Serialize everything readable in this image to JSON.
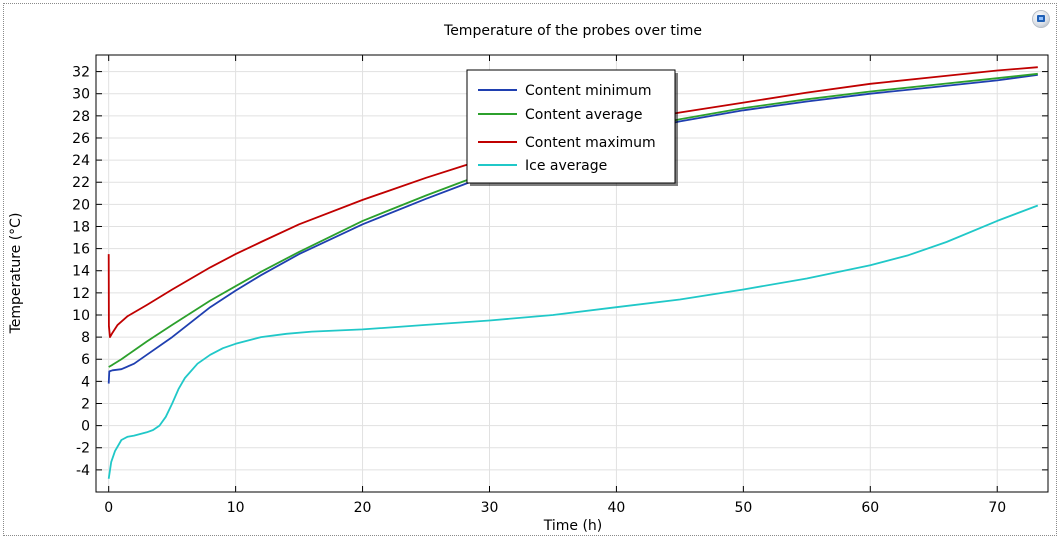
{
  "chart_data": {
    "type": "line",
    "title": "Temperature of the probes over time",
    "xlabel": "Time (h)",
    "ylabel": "Temperature (°C)",
    "xlim": [
      -1,
      74
    ],
    "ylim": [
      -6,
      33.5
    ],
    "xticks": [
      0,
      10,
      20,
      30,
      40,
      50,
      60,
      70
    ],
    "yticks": [
      -4,
      -2,
      0,
      2,
      4,
      6,
      8,
      10,
      12,
      14,
      16,
      18,
      20,
      22,
      24,
      26,
      28,
      30,
      32
    ],
    "grid": true,
    "legend_position": "top-center",
    "series": [
      {
        "name": "Content minimum",
        "color": "#1f3fb0",
        "x": [
          0,
          0.05,
          0.3,
          1,
          2,
          3,
          5,
          8,
          10,
          12,
          15,
          20,
          25,
          28,
          30,
          35,
          40,
          45,
          50,
          55,
          60,
          65,
          70,
          73.2
        ],
        "y": [
          3.8,
          4.9,
          5.0,
          5.1,
          5.6,
          6.4,
          8.0,
          10.7,
          12.2,
          13.6,
          15.5,
          18.2,
          20.5,
          21.8,
          22.7,
          24.7,
          26.3,
          27.5,
          28.5,
          29.3,
          30.0,
          30.6,
          31.2,
          31.7
        ]
      },
      {
        "name": "Content average",
        "color": "#2ca02c",
        "x": [
          0,
          0.3,
          1,
          2,
          3,
          5,
          8,
          10,
          12,
          15,
          20,
          25,
          28,
          30,
          35,
          40,
          45,
          50,
          55,
          60,
          65,
          70,
          73.2
        ],
        "y": [
          5.3,
          5.5,
          6.0,
          6.8,
          7.6,
          9.1,
          11.3,
          12.6,
          13.9,
          15.7,
          18.5,
          20.8,
          22.1,
          22.9,
          24.9,
          26.5,
          27.7,
          28.7,
          29.5,
          30.2,
          30.8,
          31.4,
          31.8
        ]
      },
      {
        "name": "Content maximum",
        "color": "#c00000",
        "x": [
          0,
          0.02,
          0.1,
          0.3,
          0.7,
          1.5,
          3,
          5,
          8,
          10,
          12,
          15,
          20,
          25,
          28,
          30,
          35,
          40,
          45,
          50,
          55,
          60,
          65,
          70,
          73.2
        ],
        "y": [
          15.5,
          9.0,
          8.0,
          8.4,
          9.1,
          9.9,
          10.9,
          12.3,
          14.3,
          15.5,
          16.6,
          18.2,
          20.4,
          22.4,
          23.5,
          24.2,
          25.9,
          27.3,
          28.3,
          29.2,
          30.1,
          30.9,
          31.5,
          32.1,
          32.4
        ]
      },
      {
        "name": "Ice average",
        "color": "#20c8c8",
        "x": [
          0,
          0.2,
          0.5,
          1,
          1.5,
          2,
          3,
          3.5,
          4,
          4.5,
          5,
          5.5,
          6,
          7,
          8,
          9,
          10,
          12,
          14,
          16,
          20,
          25,
          30,
          35,
          40,
          45,
          50,
          55,
          60,
          63,
          66,
          70,
          73.2
        ],
        "y": [
          -4.8,
          -3.3,
          -2.3,
          -1.3,
          -1.0,
          -0.9,
          -0.6,
          -0.4,
          0.0,
          0.8,
          2.0,
          3.3,
          4.3,
          5.6,
          6.4,
          7.0,
          7.4,
          8.0,
          8.3,
          8.5,
          8.7,
          9.1,
          9.5,
          10.0,
          10.7,
          11.4,
          12.3,
          13.3,
          14.5,
          15.4,
          16.6,
          18.5,
          19.9
        ]
      }
    ]
  }
}
